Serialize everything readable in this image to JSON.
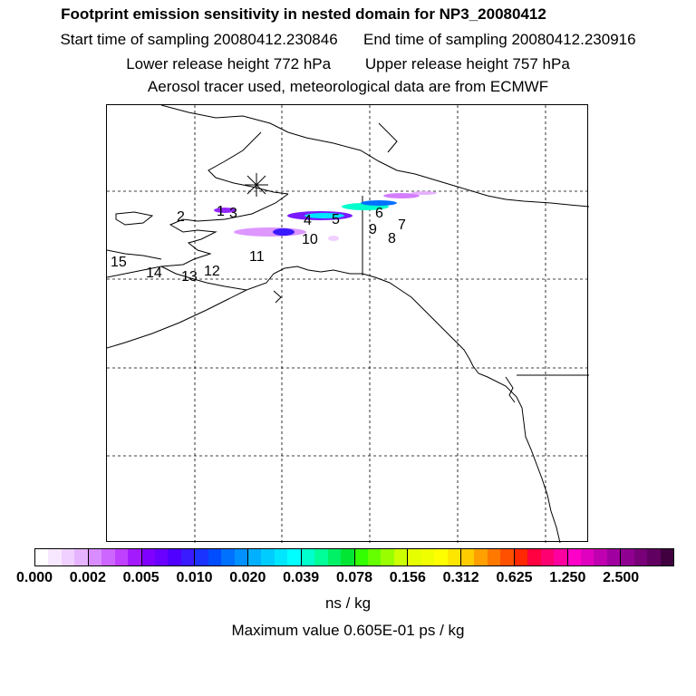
{
  "title": {
    "line1": "Footprint emission sensitivity in nested domain for NP3_20080412",
    "start": "Start time of sampling 20080412.230846",
    "end": "End time of sampling 20080412.230916",
    "lower": "Lower release height  772 hPa",
    "upper": "Upper release height  757 hPa",
    "line4": "Aerosol tracer used, meteorological data are from ECMWF"
  },
  "stations": [
    "1",
    "2",
    "3",
    "4",
    "5",
    "6",
    "7",
    "8",
    "9",
    "10",
    "11",
    "12",
    "13",
    "14",
    "15"
  ],
  "colorbar": {
    "ticks": [
      "0.000",
      "0.002",
      "0.005",
      "0.010",
      "0.020",
      "0.039",
      "0.078",
      "0.156",
      "0.312",
      "0.625",
      "1.250",
      "2.500"
    ],
    "unit": "ns / kg",
    "colors": [
      [
        "#ffffff",
        "#f8e8ff",
        "#f0d0ff",
        "#e6b3ff"
      ],
      [
        "#d98cff",
        "#cc66ff",
        "#bf40ff",
        "#a31aff"
      ],
      [
        "#8000ff",
        "#6a00ff",
        "#5000ff",
        "#3a1aff"
      ],
      [
        "#1a33ff",
        "#004dff",
        "#0070ff",
        "#0090ff"
      ],
      [
        "#00b0ff",
        "#00ccff",
        "#00e6ff",
        "#00ffff"
      ],
      [
        "#00ffcc",
        "#00ff99",
        "#00f066",
        "#00e633"
      ],
      [
        "#33ff00",
        "#66ff00",
        "#99ff00",
        "#ccff00"
      ],
      [
        "#e6ff00",
        "#f0ff00",
        "#ffff00",
        "#ffe600"
      ],
      [
        "#ffcc00",
        "#ffa000",
        "#ff7800",
        "#ff5000"
      ],
      [
        "#ff2800",
        "#ff0040",
        "#ff0070",
        "#ff00a0"
      ],
      [
        "#ff00c8",
        "#e000c0",
        "#c000b0",
        "#a000a0"
      ],
      [
        "#900090",
        "#780078",
        "#600060",
        "#400040"
      ]
    ]
  },
  "maximum": "Maximum value  0.605E-01 ps / kg"
}
